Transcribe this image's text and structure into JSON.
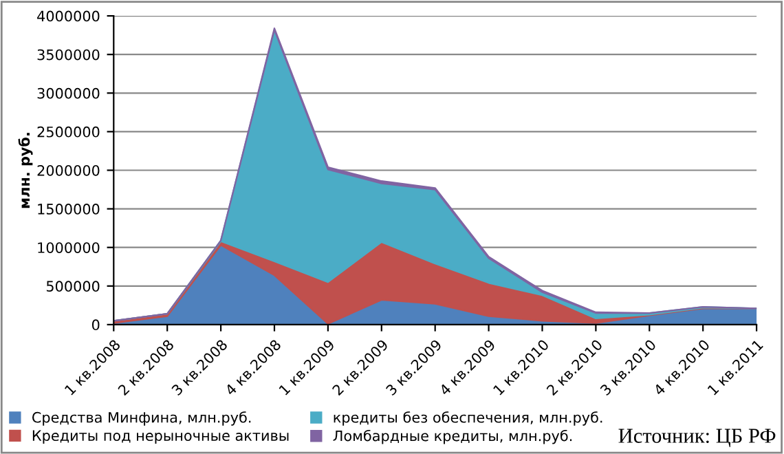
{
  "chart_data": {
    "type": "area",
    "stacked": true,
    "ylabel": "млн. руб.",
    "categories": [
      "1 кв.2008",
      "2 кв.2008",
      "3 кв.2008",
      "4 кв.2008",
      "1 кв.2009",
      "2 кв.2009",
      "3 кв.2009",
      "4 кв.2009",
      "1 кв.2010",
      "2 кв.2010",
      "3 кв.2010",
      "4 кв.2010",
      "1 кв.2011"
    ],
    "series": [
      {
        "name": "Средства Минфина, млн.руб.",
        "color": "#4f81bd",
        "values": [
          20000,
          110000,
          1030000,
          640000,
          10000,
          320000,
          270000,
          110000,
          50000,
          20000,
          120000,
          210000,
          210000
        ]
      },
      {
        "name": "Кредиты под нерыночные активы",
        "color": "#c0504d",
        "values": [
          30000,
          30000,
          50000,
          180000,
          540000,
          750000,
          520000,
          430000,
          330000,
          60000,
          10000,
          10000,
          0
        ]
      },
      {
        "name": "кредиты без обеспечения, млн.руб.",
        "color": "#4bacc6",
        "values": [
          0,
          0,
          10000,
          3000000,
          1460000,
          760000,
          960000,
          320000,
          40000,
          70000,
          20000,
          10000,
          0
        ]
      },
      {
        "name": "Ломбардные кредиты, млн.руб.",
        "color": "#8064a2",
        "values": [
          0,
          0,
          0,
          20000,
          30000,
          30000,
          20000,
          20000,
          20000,
          10000,
          0,
          0,
          0
        ]
      }
    ],
    "ylim": [
      0,
      4000000
    ],
    "yticks": [
      0,
      500000,
      1000000,
      1500000,
      2000000,
      2500000,
      3000000,
      3500000,
      4000000
    ],
    "grid": "y",
    "legend": "bottom",
    "annotations": [
      "Источник: ЦБ РФ"
    ]
  }
}
